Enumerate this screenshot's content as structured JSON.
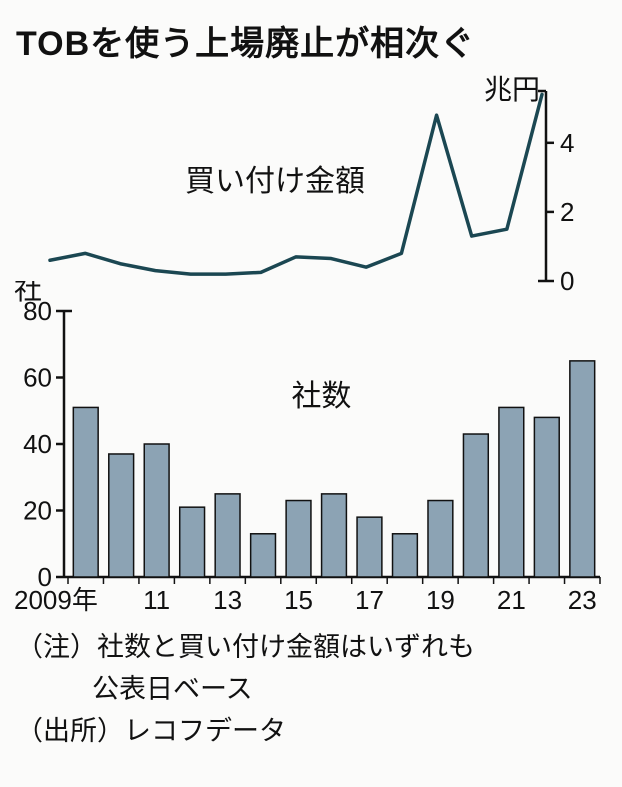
{
  "title": "TOBを使う上場廃止が相次ぐ",
  "line_chart": {
    "type": "line",
    "series_label": "買い付け金額",
    "unit_label": "兆円",
    "stroke_color": "#1b4752",
    "stroke_width": 3.5,
    "background_color": "#fbfbfa",
    "x_years": [
      2009,
      2010,
      2011,
      2012,
      2013,
      2014,
      2015,
      2016,
      2017,
      2018,
      2019,
      2020,
      2021,
      2022,
      2023
    ],
    "values": [
      0.6,
      0.8,
      0.5,
      0.3,
      0.2,
      0.2,
      0.25,
      0.7,
      0.65,
      0.4,
      0.8,
      4.8,
      1.3,
      1.5,
      5.4
    ],
    "yaxis": {
      "side": "right",
      "ticks": [
        0,
        2,
        4
      ],
      "ylim": [
        0,
        5.5
      ],
      "tick_len": 8,
      "axis_color": "#111",
      "axis_width": 2.5,
      "tick_fontsize": 26
    },
    "label_fontsize": 30
  },
  "bar_chart": {
    "type": "bar",
    "series_label": "社数",
    "unit_label": "社",
    "bar_fill": "#8ca3b4",
    "bar_stroke": "#111",
    "bar_stroke_width": 1.5,
    "background_color": "#fbfbfa",
    "x_years": [
      2009,
      2010,
      2011,
      2012,
      2013,
      2014,
      2015,
      2016,
      2017,
      2018,
      2019,
      2020,
      2021,
      2022,
      2023
    ],
    "values": [
      51,
      37,
      40,
      21,
      25,
      13,
      23,
      25,
      18,
      13,
      23,
      43,
      51,
      48,
      65
    ],
    "x_tick_labels": [
      "2009年",
      "",
      "11",
      "",
      "13",
      "",
      "15",
      "",
      "17",
      "",
      "19",
      "",
      "21",
      "",
      "23"
    ],
    "yaxis": {
      "side": "left",
      "ticks": [
        0,
        20,
        40,
        60,
        80
      ],
      "ylim": [
        0,
        80
      ],
      "tick_len": 8,
      "axis_color": "#111",
      "axis_width": 2.5,
      "tick_fontsize": 26
    },
    "bar_width_ratio": 0.7,
    "label_fontsize": 30
  },
  "note_line1_prefix": "（注）",
  "note_line1": "社数と買い付け金額はいずれも",
  "note_line2": "公表日ベース",
  "source_prefix": "（出所）",
  "source": "レコフデータ"
}
